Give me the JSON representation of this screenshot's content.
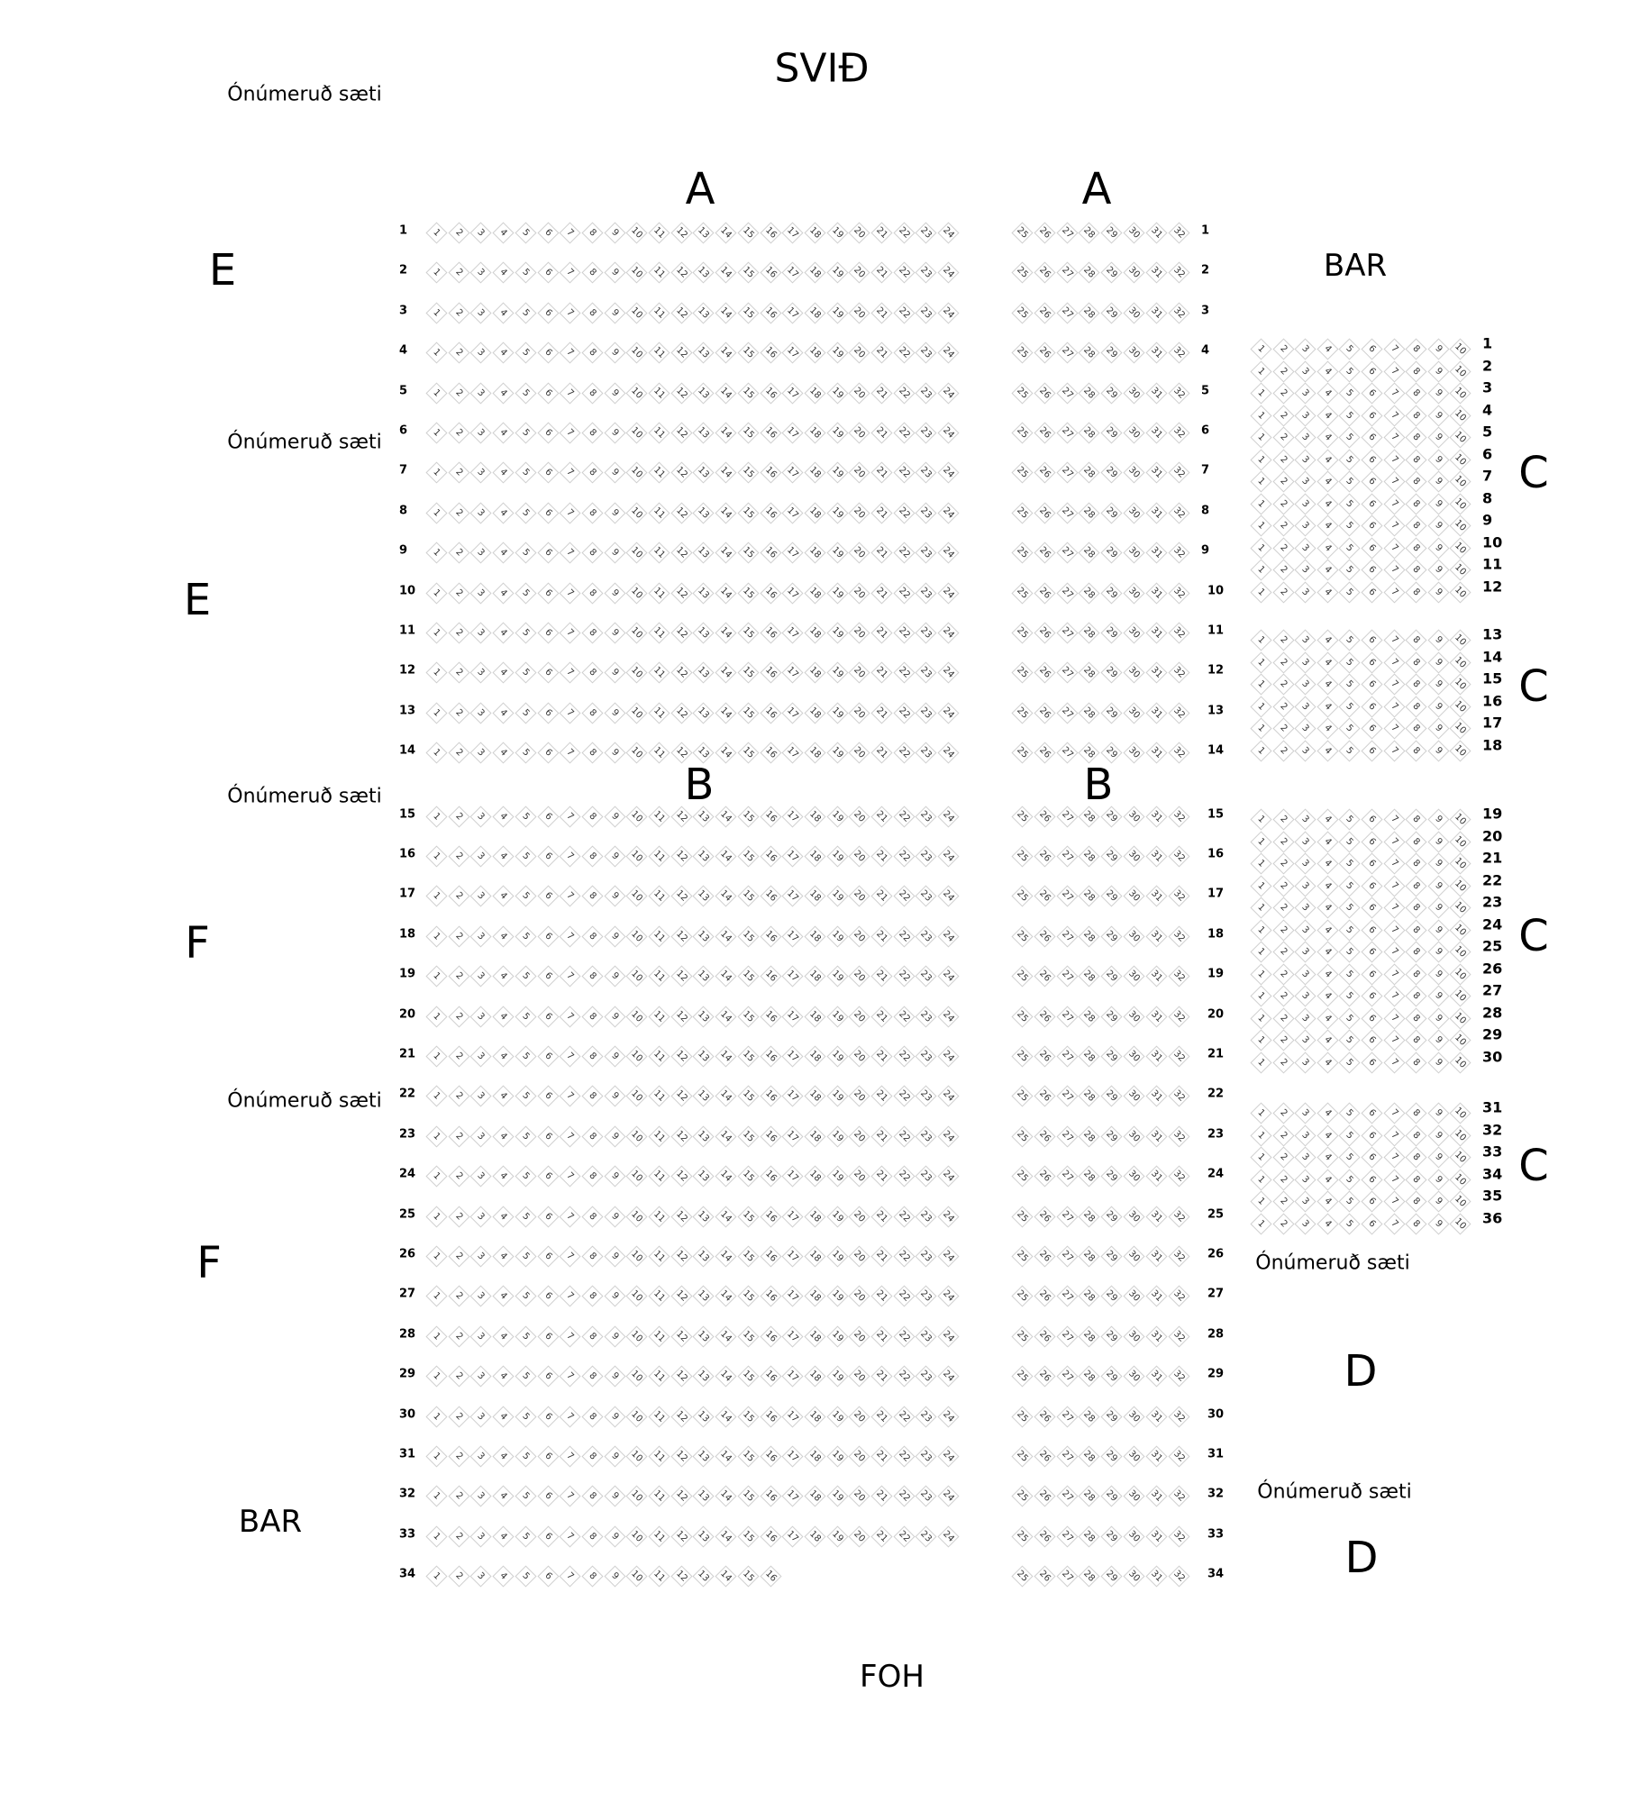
{
  "stage_label": "SVIĐ",
  "foh_label": "FOH",
  "bar_labels": [
    "BAR",
    "BAR"
  ],
  "unnumbered_label": "Ónúmeruð sæti",
  "section_labels": {
    "A_left": "A",
    "A_right": "A",
    "B_left": "B",
    "B_right": "B",
    "E1": "E",
    "E2": "E",
    "F1": "F",
    "F2": "F",
    "C1": "C",
    "C2": "C",
    "C3": "C",
    "C4": "C",
    "D1": "D",
    "D2": "D"
  },
  "colors": {
    "seat_border": "#cfcfcf",
    "text": "#000000"
  },
  "main_block": {
    "rows": [
      1,
      2,
      3,
      4,
      5,
      6,
      7,
      8,
      9,
      10,
      11,
      12,
      13,
      14,
      15,
      16,
      17,
      18,
      19,
      20,
      21,
      22,
      23,
      24,
      25,
      26,
      27,
      28,
      29,
      30,
      31,
      32,
      33,
      34
    ],
    "left_seats": [
      1,
      24
    ],
    "left_seats_row_34": [
      1,
      16
    ],
    "right_seats": [
      25,
      32
    ]
  },
  "c_block": {
    "groups": [
      {
        "rows": [
          1,
          12
        ]
      },
      {
        "rows": [
          13,
          18
        ]
      },
      {
        "rows": [
          19,
          30
        ]
      },
      {
        "rows": [
          31,
          36
        ]
      }
    ],
    "seats": [
      1,
      10
    ]
  }
}
